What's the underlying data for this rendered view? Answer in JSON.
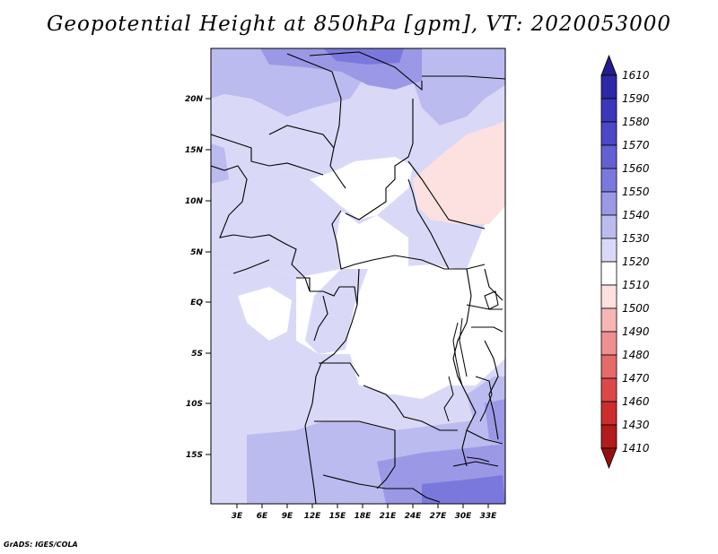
{
  "title": "Geopotential Height at 850hPa [gpm], VT: 2020053000",
  "credit": "GrADS: IGES/COLA",
  "map": {
    "lat_range": [
      -20,
      25
    ],
    "lon_range": [
      -1,
      34
    ],
    "y_ticks": [
      "20N",
      "15N",
      "10N",
      "5N",
      "EQ",
      "5S",
      "10S",
      "15S"
    ],
    "x_ticks": [
      "3E",
      "6E",
      "9E",
      "12E",
      "15E",
      "18E",
      "21E",
      "24E",
      "27E",
      "30E",
      "33E"
    ]
  },
  "colorbar": {
    "labels": [
      "1610",
      "1590",
      "1580",
      "1570",
      "1560",
      "1550",
      "1540",
      "1530",
      "1520",
      "1510",
      "1500",
      "1490",
      "1480",
      "1470",
      "1460",
      "1430",
      "1410"
    ],
    "colors": [
      "#221c8c",
      "#2e28a6",
      "#3c36ba",
      "#4d47c8",
      "#6460d4",
      "#7b78dd",
      "#9b98e6",
      "#bcbbef",
      "#d9d9f7",
      "#ffffff",
      "#fde0e0",
      "#f6b6b6",
      "#ee9090",
      "#e66a6a",
      "#dc4848",
      "#cc2e2e",
      "#b21c1c",
      "#951010"
    ]
  }
}
